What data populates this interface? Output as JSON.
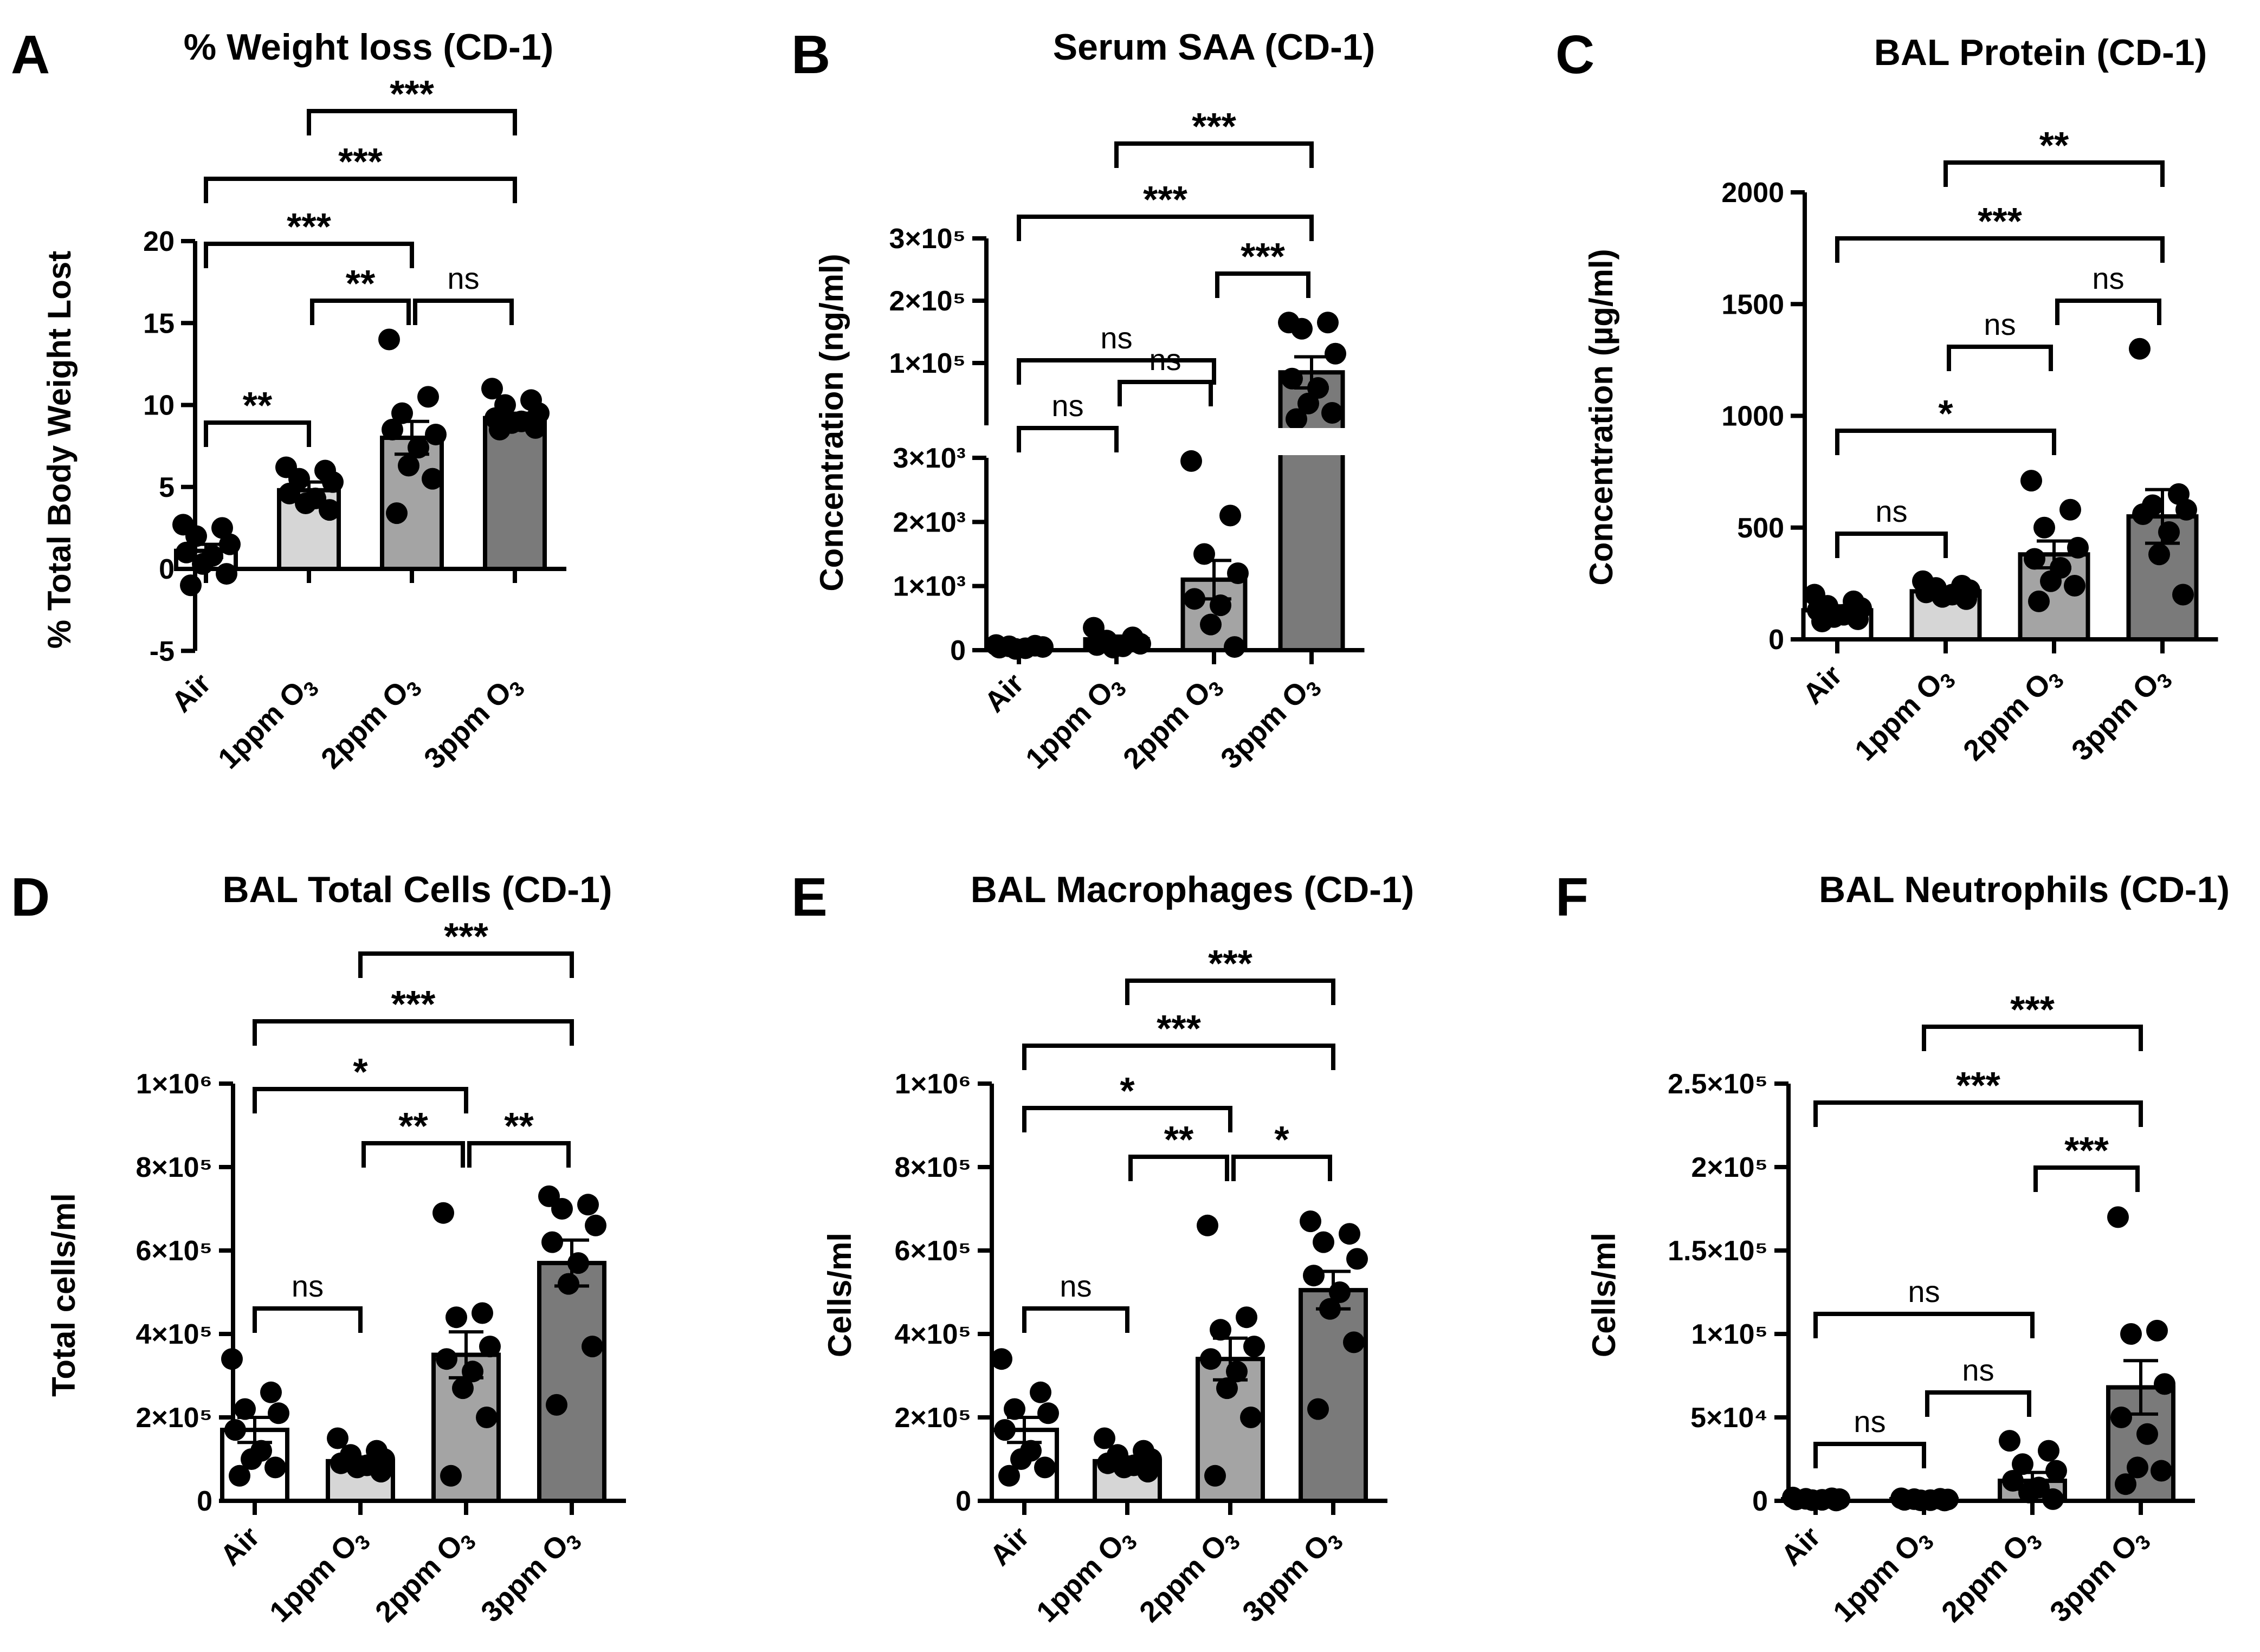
{
  "figure": {
    "categories": [
      {
        "main": "Air",
        "sub": ""
      },
      {
        "main": "1ppm O",
        "sub": "3"
      },
      {
        "main": "2ppm O",
        "sub": "3"
      },
      {
        "main": "3ppm O",
        "sub": "3"
      }
    ],
    "bar_colors": [
      "#ffffff",
      "#d6d6d6",
      "#a4a4a4",
      "#7a7a7a"
    ],
    "point_color": "#000000"
  },
  "chart_data": [
    {
      "type": "bar",
      "panel": "A",
      "title": "% Weight loss (CD-1)",
      "ylabel": "% Total Body Weight Lost",
      "ylim": [
        -5,
        20
      ],
      "ticks": [
        {
          "v": -5,
          "label": "-5"
        },
        {
          "v": 0,
          "label": "0"
        },
        {
          "v": 5,
          "label": "5"
        },
        {
          "v": 10,
          "label": "10"
        },
        {
          "v": 15,
          "label": "15"
        },
        {
          "v": 20,
          "label": "20"
        }
      ],
      "zero_axis": true,
      "values": [
        1.1,
        4.8,
        8.0,
        9.2
      ],
      "sem": [
        0.4,
        0.5,
        1.0,
        0.3
      ],
      "points": [
        [
          2.7,
          2.5,
          2.0,
          1.5,
          1.0,
          0.8,
          0.3,
          -0.3,
          -1.0
        ],
        [
          6.2,
          6.0,
          5.5,
          5.3,
          4.6,
          4.3,
          4.0,
          3.6
        ],
        [
          14.0,
          10.5,
          9.5,
          8.2,
          8.5,
          7.4,
          6.3,
          5.5,
          3.4
        ],
        [
          11.0,
          10.3,
          10.0,
          9.5,
          9.2,
          9.0,
          8.9,
          8.6,
          8.5
        ]
      ],
      "comparisons": [
        {
          "from": 1,
          "to": 3,
          "label": "***"
        },
        {
          "from": 0,
          "to": 3,
          "label": "***"
        },
        {
          "from": 0,
          "to": 2,
          "label": "***"
        },
        {
          "from": 1,
          "to": 2,
          "label": "**"
        },
        {
          "from": 2,
          "to": 3,
          "label": "ns"
        },
        {
          "from": 0,
          "to": 1,
          "label": "**"
        }
      ]
    },
    {
      "type": "bar",
      "panel": "B",
      "title": "Serum SAA (CD-1)",
      "ylabel": "Concentration (ng/ml)",
      "axis_break": true,
      "lower_ylim": [
        0,
        3000
      ],
      "upper_ylim": [
        0,
        300000
      ],
      "ticks": [
        {
          "v": 0,
          "label": "0"
        },
        {
          "v": 1000,
          "label": "1×10³"
        },
        {
          "v": 2000,
          "label": "2×10³"
        },
        {
          "v": 3000,
          "label": "3×10³"
        },
        {
          "v": 100000,
          "label": "1×10⁵"
        },
        {
          "v": 200000,
          "label": "2×10⁵"
        },
        {
          "v": 300000,
          "label": "3×10⁵"
        }
      ],
      "values": [
        60,
        170,
        1100,
        85000
      ],
      "sem": [
        20,
        50,
        300,
        25000
      ],
      "points": [
        [
          80,
          70,
          60,
          50,
          40,
          30,
          20
        ],
        [
          350,
          200,
          150,
          100,
          80,
          60,
          40
        ],
        [
          2950,
          2100,
          1500,
          1200,
          800,
          700,
          400,
          50
        ],
        [
          165000,
          165000,
          155000,
          115000,
          75000,
          60000,
          35000,
          20000,
          10000
        ]
      ],
      "comparisons": [
        {
          "from": 1,
          "to": 3,
          "label": "***"
        },
        {
          "from": 0,
          "to": 3,
          "label": "***"
        },
        {
          "from": 2,
          "to": 3,
          "label": "***"
        },
        {
          "from": 0,
          "to": 2,
          "label": "ns"
        },
        {
          "from": 1,
          "to": 2,
          "label": "ns"
        },
        {
          "from": 0,
          "to": 1,
          "label": "ns"
        }
      ]
    },
    {
      "type": "bar",
      "panel": "C",
      "title": "BAL Protein (CD-1)",
      "ylabel": "Concentration (µg/ml)",
      "ylim": [
        0,
        2000
      ],
      "ticks": [
        {
          "v": 0,
          "label": "0"
        },
        {
          "v": 500,
          "label": "500"
        },
        {
          "v": 1000,
          "label": "1000"
        },
        {
          "v": 1500,
          "label": "1500"
        },
        {
          "v": 2000,
          "label": "2000"
        }
      ],
      "values": [
        130,
        215,
        380,
        550
      ],
      "sem": [
        20,
        15,
        60,
        120
      ],
      "points": [
        [
          200,
          170,
          150,
          140,
          130,
          110,
          100,
          90,
          80
        ],
        [
          260,
          240,
          230,
          220,
          210,
          200,
          190,
          180
        ],
        [
          710,
          580,
          500,
          410,
          360,
          320,
          260,
          240,
          170
        ],
        [
          1300,
          650,
          600,
          580,
          560,
          480,
          380,
          200
        ]
      ],
      "comparisons": [
        {
          "from": 1,
          "to": 3,
          "label": "**"
        },
        {
          "from": 0,
          "to": 3,
          "label": "***"
        },
        {
          "from": 2,
          "to": 3,
          "label": "ns"
        },
        {
          "from": 1,
          "to": 2,
          "label": "ns"
        },
        {
          "from": 0,
          "to": 2,
          "label": "*"
        },
        {
          "from": 0,
          "to": 1,
          "label": "ns"
        }
      ]
    },
    {
      "type": "bar",
      "panel": "D",
      "title": "BAL Total Cells (CD-1)",
      "ylabel": "Total cells/ml",
      "ylim": [
        0,
        1000000
      ],
      "ticks": [
        {
          "v": 0,
          "label": "0"
        },
        {
          "v": 200000,
          "label": "2×10⁵"
        },
        {
          "v": 400000,
          "label": "4×10⁵"
        },
        {
          "v": 600000,
          "label": "6×10⁵"
        },
        {
          "v": 800000,
          "label": "8×10⁵"
        },
        {
          "v": 1000000,
          "label": "1×10⁶"
        }
      ],
      "values": [
        170000,
        95000,
        350000,
        570000
      ],
      "sem": [
        30000,
        10000,
        55000,
        55000
      ],
      "points": [
        [
          340000,
          260000,
          220000,
          210000,
          170000,
          120000,
          100000,
          80000,
          60000
        ],
        [
          150000,
          120000,
          110000,
          100000,
          90000,
          85000,
          80000,
          70000
        ],
        [
          690000,
          450000,
          440000,
          370000,
          340000,
          310000,
          270000,
          200000,
          60000
        ],
        [
          730000,
          710000,
          700000,
          660000,
          620000,
          570000,
          520000,
          370000,
          230000
        ]
      ],
      "comparisons": [
        {
          "from": 1,
          "to": 3,
          "label": "***"
        },
        {
          "from": 0,
          "to": 3,
          "label": "***"
        },
        {
          "from": 0,
          "to": 2,
          "label": "*"
        },
        {
          "from": 1,
          "to": 2,
          "label": "**"
        },
        {
          "from": 2,
          "to": 3,
          "label": "**"
        },
        {
          "from": 0,
          "to": 1,
          "label": "ns"
        }
      ]
    },
    {
      "type": "bar",
      "panel": "E",
      "title": "BAL Macrophages (CD-1)",
      "ylabel": "Cells/ml",
      "ylim": [
        0,
        1000000
      ],
      "ticks": [
        {
          "v": 0,
          "label": "0"
        },
        {
          "v": 200000,
          "label": "2×10⁵"
        },
        {
          "v": 400000,
          "label": "4×10⁵"
        },
        {
          "v": 600000,
          "label": "6×10⁵"
        },
        {
          "v": 800000,
          "label": "8×10⁵"
        },
        {
          "v": 1000000,
          "label": "1×10⁶"
        }
      ],
      "values": [
        170000,
        95000,
        340000,
        505000
      ],
      "sem": [
        30000,
        10000,
        50000,
        45000
      ],
      "points": [
        [
          340000,
          260000,
          220000,
          210000,
          170000,
          120000,
          100000,
          80000,
          60000
        ],
        [
          150000,
          120000,
          110000,
          100000,
          90000,
          85000,
          80000,
          70000
        ],
        [
          660000,
          440000,
          410000,
          370000,
          340000,
          310000,
          270000,
          200000,
          60000
        ],
        [
          670000,
          640000,
          620000,
          580000,
          540000,
          500000,
          460000,
          380000,
          220000
        ]
      ],
      "comparisons": [
        {
          "from": 1,
          "to": 3,
          "label": "***"
        },
        {
          "from": 0,
          "to": 3,
          "label": "***"
        },
        {
          "from": 0,
          "to": 2,
          "label": "*"
        },
        {
          "from": 1,
          "to": 2,
          "label": "**"
        },
        {
          "from": 2,
          "to": 3,
          "label": "*"
        },
        {
          "from": 0,
          "to": 1,
          "label": "ns"
        }
      ]
    },
    {
      "type": "bar",
      "panel": "F",
      "title": "BAL Neutrophils (CD-1)",
      "ylabel": "Cells/ml",
      "ylim": [
        0,
        250000
      ],
      "ticks": [
        {
          "v": 0,
          "label": "0"
        },
        {
          "v": 50000,
          "label": "5×10⁴"
        },
        {
          "v": 100000,
          "label": "1×10⁵"
        },
        {
          "v": 150000,
          "label": "1.5×10⁵"
        },
        {
          "v": 200000,
          "label": "2×10⁵"
        },
        {
          "v": 250000,
          "label": "2.5×10⁵"
        }
      ],
      "values": [
        1000,
        1000,
        12000,
        68000
      ],
      "sem": [
        300,
        300,
        5000,
        16000
      ],
      "points": [
        [
          2000,
          1500,
          1200,
          1000,
          800,
          600,
          400,
          200
        ],
        [
          1500,
          1200,
          1000,
          800,
          600,
          400,
          300,
          200
        ],
        [
          36000,
          30000,
          22000,
          18000,
          12000,
          8000,
          5000,
          1000
        ],
        [
          170000,
          102000,
          100000,
          70000,
          50000,
          40000,
          20000,
          18000,
          10000
        ]
      ],
      "comparisons": [
        {
          "from": 1,
          "to": 3,
          "label": "***"
        },
        {
          "from": 0,
          "to": 3,
          "label": "***"
        },
        {
          "from": 2,
          "to": 3,
          "label": "***"
        },
        {
          "from": 0,
          "to": 2,
          "label": "ns"
        },
        {
          "from": 1,
          "to": 2,
          "label": "ns"
        },
        {
          "from": 0,
          "to": 1,
          "label": "ns"
        }
      ]
    }
  ]
}
